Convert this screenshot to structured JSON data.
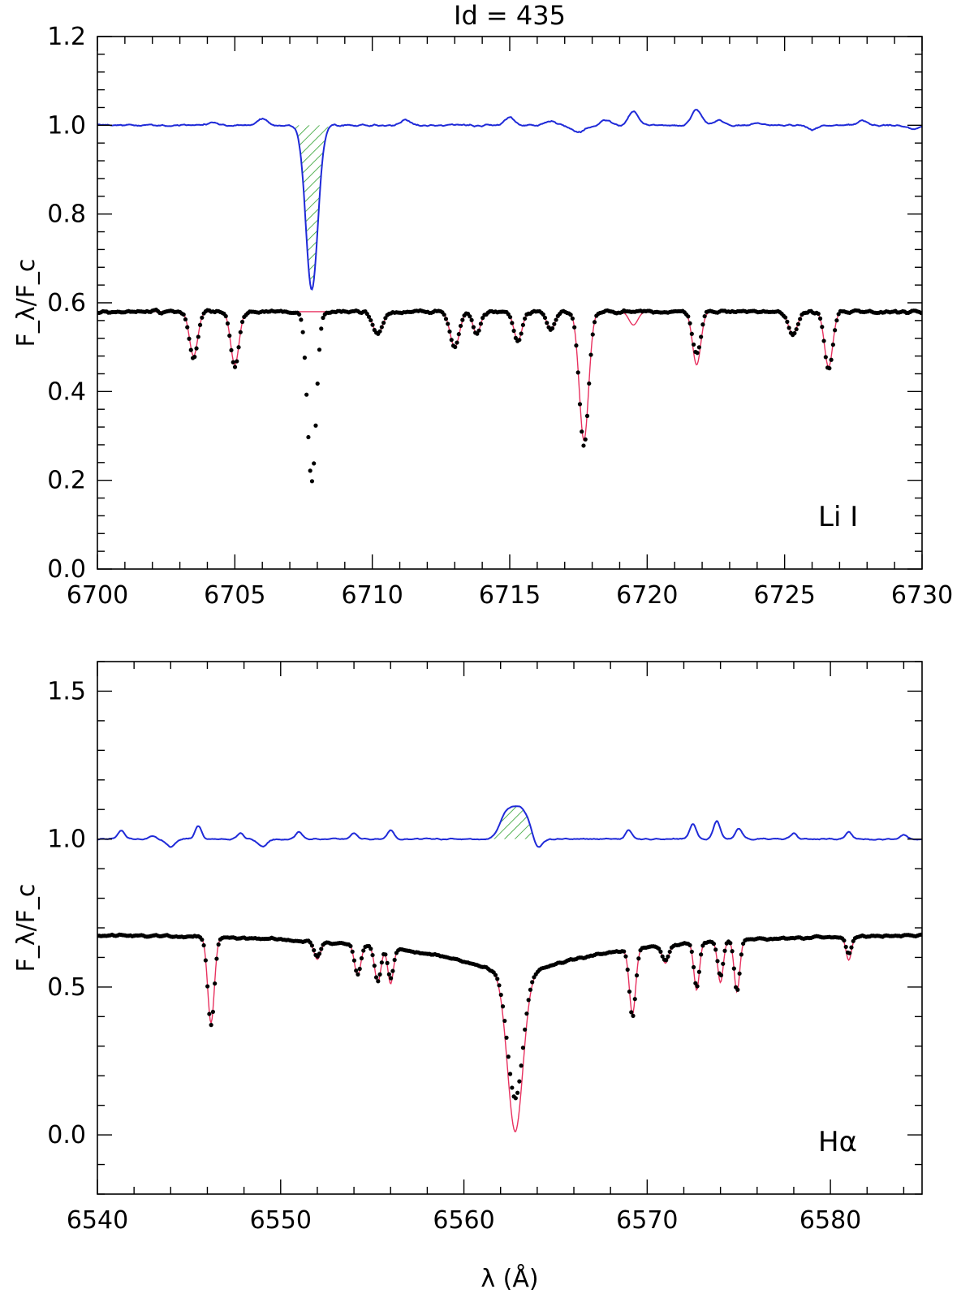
{
  "title": "Id = 435",
  "chart_data": [
    {
      "type": "line",
      "panel": "top",
      "annotation": "Li I",
      "ylabel": "F_λ/F_c",
      "xlabel": "",
      "xlim": [
        6700,
        6730
      ],
      "ylim": [
        0.0,
        1.2
      ],
      "x_ticks": [
        6700,
        6705,
        6710,
        6715,
        6720,
        6725,
        6730
      ],
      "y_ticks": [
        0.0,
        0.2,
        0.4,
        0.6,
        0.8,
        1.0,
        1.2
      ],
      "y_tick_labels": [
        "0.0",
        "0.2",
        "0.4",
        "0.6",
        "0.8",
        "1.0",
        "1.2"
      ],
      "observed_continuum": 0.58,
      "residual_continuum": 1.0,
      "residual_noise_points": [
        [
          6704.2,
          1.006
        ],
        [
          6706.0,
          1.015
        ],
        [
          6711.2,
          1.012
        ],
        [
          6715.0,
          1.018
        ],
        [
          6716.5,
          1.01
        ],
        [
          6718.5,
          1.012
        ],
        [
          6719.5,
          1.03
        ],
        [
          6721.8,
          1.035
        ],
        [
          6722.6,
          1.012
        ],
        [
          6724.0,
          1.006
        ],
        [
          6726.0,
          0.99
        ],
        [
          6727.8,
          1.01
        ],
        [
          6729.7,
          0.99
        ]
      ],
      "residual_dips": [
        [
          6717.5,
          0.985
        ]
      ],
      "emphasized_feature": {
        "type": "absorption",
        "center": 6707.8,
        "depth": 0.63,
        "fill_range": [
          6707.2,
          6708.4
        ]
      },
      "observed_lines": [
        {
          "center": 6703.5,
          "depth": 0.475,
          "width": 0.15
        },
        {
          "center": 6705.0,
          "depth": 0.455,
          "width": 0.15
        },
        {
          "center": 6707.8,
          "depth": 0.195,
          "width": 0.16
        },
        {
          "center": 6710.2,
          "depth": 0.53,
          "width": 0.18
        },
        {
          "center": 6713.0,
          "depth": 0.5,
          "width": 0.17
        },
        {
          "center": 6713.8,
          "depth": 0.53,
          "width": 0.14
        },
        {
          "center": 6715.3,
          "depth": 0.515,
          "width": 0.15
        },
        {
          "center": 6716.5,
          "depth": 0.54,
          "width": 0.15
        },
        {
          "center": 6717.7,
          "depth": 0.28,
          "width": 0.17
        },
        {
          "center": 6721.8,
          "depth": 0.485,
          "width": 0.15
        },
        {
          "center": 6725.3,
          "depth": 0.53,
          "width": 0.17
        },
        {
          "center": 6726.6,
          "depth": 0.45,
          "width": 0.15
        }
      ],
      "model_lines": [
        {
          "center": 6703.5,
          "depth": 0.48,
          "width": 0.15
        },
        {
          "center": 6705.0,
          "depth": 0.46,
          "width": 0.15
        },
        {
          "center": 6710.2,
          "depth": 0.53,
          "width": 0.18
        },
        {
          "center": 6713.0,
          "depth": 0.5,
          "width": 0.17
        },
        {
          "center": 6713.8,
          "depth": 0.53,
          "width": 0.14
        },
        {
          "center": 6715.3,
          "depth": 0.515,
          "width": 0.15
        },
        {
          "center": 6716.5,
          "depth": 0.54,
          "width": 0.15
        },
        {
          "center": 6717.7,
          "depth": 0.29,
          "width": 0.17
        },
        {
          "center": 6719.5,
          "depth": 0.55,
          "width": 0.16
        },
        {
          "center": 6721.8,
          "depth": 0.46,
          "width": 0.15
        },
        {
          "center": 6725.3,
          "depth": 0.53,
          "width": 0.17
        },
        {
          "center": 6726.6,
          "depth": 0.455,
          "width": 0.15
        }
      ],
      "series_colors": {
        "observed": "#000000",
        "model": "#e8315f",
        "residual": "#1f2ad8",
        "fill": "#2ca02c"
      }
    },
    {
      "type": "line",
      "panel": "bottom",
      "annotation": "Hα",
      "ylabel": "F_λ/F_c",
      "xlabel": "λ (Å)",
      "xlim": [
        6540,
        6585
      ],
      "ylim": [
        -0.2,
        1.6
      ],
      "x_ticks": [
        6540,
        6550,
        6560,
        6570,
        6580
      ],
      "y_ticks": [
        0.0,
        0.5,
        1.0,
        1.5
      ],
      "y_tick_labels": [
        "0.0",
        "0.5",
        "1.0",
        "1.5"
      ],
      "observed_continuum": 0.68,
      "residual_continuum": 1.0,
      "residual_noise_points": [
        [
          6541.3,
          1.03
        ],
        [
          6543.0,
          1.01
        ],
        [
          6545.5,
          1.045
        ],
        [
          6547.8,
          1.02
        ],
        [
          6551.0,
          1.025
        ],
        [
          6554.0,
          1.02
        ],
        [
          6556.0,
          1.03
        ],
        [
          6558.5,
          1.0
        ],
        [
          6566.0,
          1.0
        ],
        [
          6569.0,
          1.03
        ],
        [
          6572.5,
          1.05
        ],
        [
          6573.8,
          1.06
        ],
        [
          6575.0,
          1.035
        ],
        [
          6578.0,
          1.02
        ],
        [
          6581.0,
          1.025
        ],
        [
          6584.0,
          1.015
        ]
      ],
      "residual_dips": [
        [
          6544.0,
          0.975
        ],
        [
          6549.0,
          0.975
        ],
        [
          6564.0,
          0.965
        ]
      ],
      "emphasized_feature": {
        "type": "emission",
        "center": 6562.8,
        "peak": 1.11,
        "fill_range": [
          6561.3,
          6563.8
        ]
      },
      "halpha_wing": {
        "center": 6562.8,
        "observed_core_depth": 0.12,
        "model_core_depth": 0.01
      },
      "observed_lines": [
        {
          "center": 6546.2,
          "depth": 0.38,
          "width": 0.18
        },
        {
          "center": 6552.0,
          "depth": 0.63,
          "width": 0.18
        },
        {
          "center": 6554.2,
          "depth": 0.58,
          "width": 0.17
        },
        {
          "center": 6555.3,
          "depth": 0.565,
          "width": 0.17
        },
        {
          "center": 6556.0,
          "depth": 0.575,
          "width": 0.15
        },
        {
          "center": 6569.2,
          "depth": 0.45,
          "width": 0.17
        },
        {
          "center": 6571.0,
          "depth": 0.63,
          "width": 0.18
        },
        {
          "center": 6572.7,
          "depth": 0.53,
          "width": 0.15
        },
        {
          "center": 6574.0,
          "depth": 0.56,
          "width": 0.15
        },
        {
          "center": 6574.9,
          "depth": 0.505,
          "width": 0.15
        },
        {
          "center": 6581.0,
          "depth": 0.62,
          "width": 0.15
        }
      ],
      "model_lines": [
        {
          "center": 6546.2,
          "depth": 0.39,
          "width": 0.18
        },
        {
          "center": 6552.0,
          "depth": 0.62,
          "width": 0.18
        },
        {
          "center": 6554.2,
          "depth": 0.575,
          "width": 0.17
        },
        {
          "center": 6555.3,
          "depth": 0.56,
          "width": 0.17
        },
        {
          "center": 6556.0,
          "depth": 0.56,
          "width": 0.15
        },
        {
          "center": 6569.2,
          "depth": 0.46,
          "width": 0.17
        },
        {
          "center": 6571.0,
          "depth": 0.62,
          "width": 0.18
        },
        {
          "center": 6572.7,
          "depth": 0.52,
          "width": 0.15
        },
        {
          "center": 6574.0,
          "depth": 0.54,
          "width": 0.15
        },
        {
          "center": 6574.9,
          "depth": 0.505,
          "width": 0.15
        },
        {
          "center": 6581.0,
          "depth": 0.6,
          "width": 0.15
        }
      ],
      "series_colors": {
        "observed": "#000000",
        "model": "#e8315f",
        "residual": "#1f2ad8",
        "fill": "#2ca02c"
      }
    }
  ]
}
